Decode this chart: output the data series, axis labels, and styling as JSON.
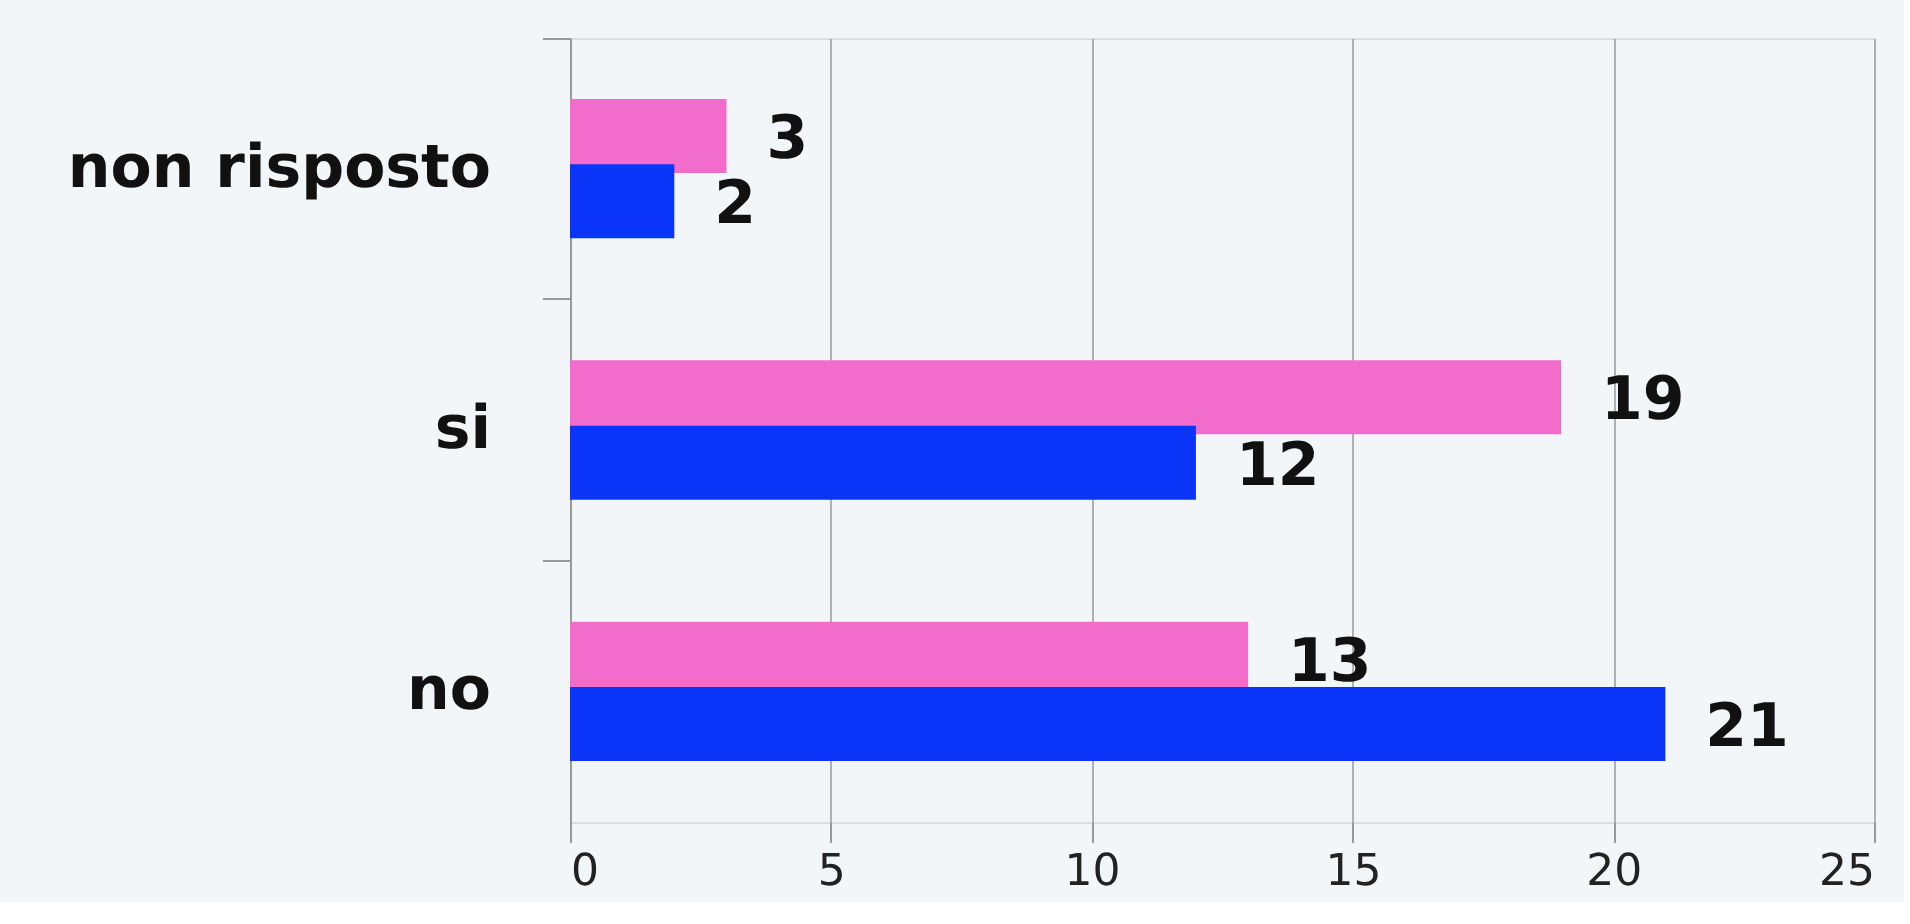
{
  "chart_data": {
    "type": "bar",
    "orientation": "horizontal",
    "categories": [
      "non risposto",
      "si",
      "no"
    ],
    "series": [
      {
        "color": "#f26dcb",
        "values": [
          3,
          19,
          13
        ]
      },
      {
        "color": "#0a34f7",
        "values": [
          2,
          12,
          21
        ]
      }
    ],
    "xlim": [
      0,
      25
    ],
    "xticks": [
      0,
      5,
      10,
      15,
      20,
      25
    ],
    "grid": "x",
    "data_labels": true
  }
}
